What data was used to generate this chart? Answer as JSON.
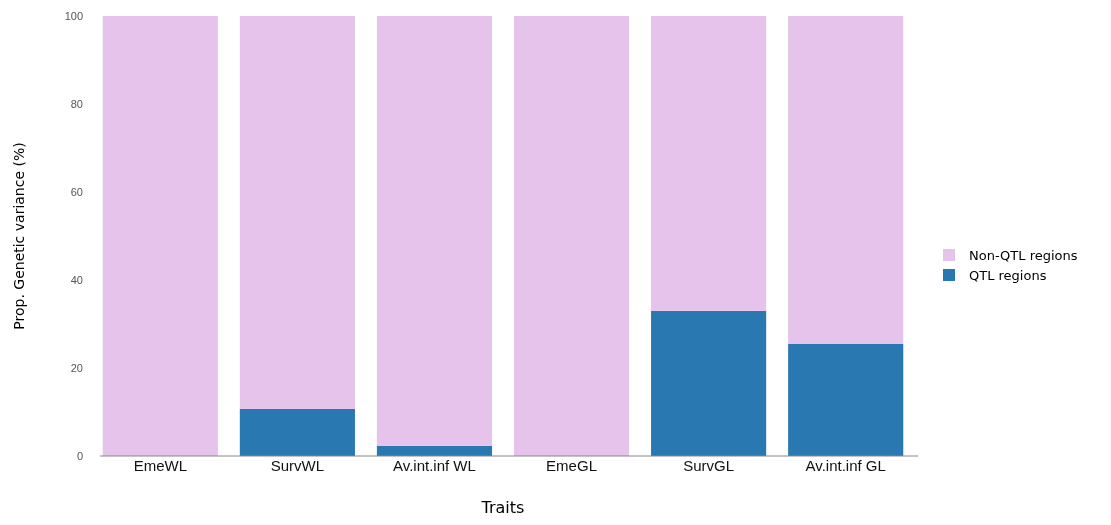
{
  "chart_data": {
    "type": "bar",
    "stacked": true,
    "xlabel": "Traits",
    "ylabel": "Prop. Genetic variance (%)",
    "categories": [
      "EmeWL",
      "SurvWL",
      "Av.int.inf WL",
      "EmeGL",
      "SurvGL",
      "Av.int.inf GL"
    ],
    "series": [
      {
        "name": "QTL regions",
        "color": "#2a78b1",
        "values": [
          0,
          10.7,
          2.3,
          0,
          33,
          25.5
        ]
      },
      {
        "name": "Non-QTL regions",
        "color": "#e5c3ea",
        "values": [
          100,
          89.3,
          97.7,
          100,
          67,
          74.5
        ]
      }
    ],
    "ylim": [
      0,
      100
    ],
    "yticks": [
      0,
      20,
      40,
      60,
      80,
      100
    ],
    "grid": false,
    "legend": "right"
  }
}
